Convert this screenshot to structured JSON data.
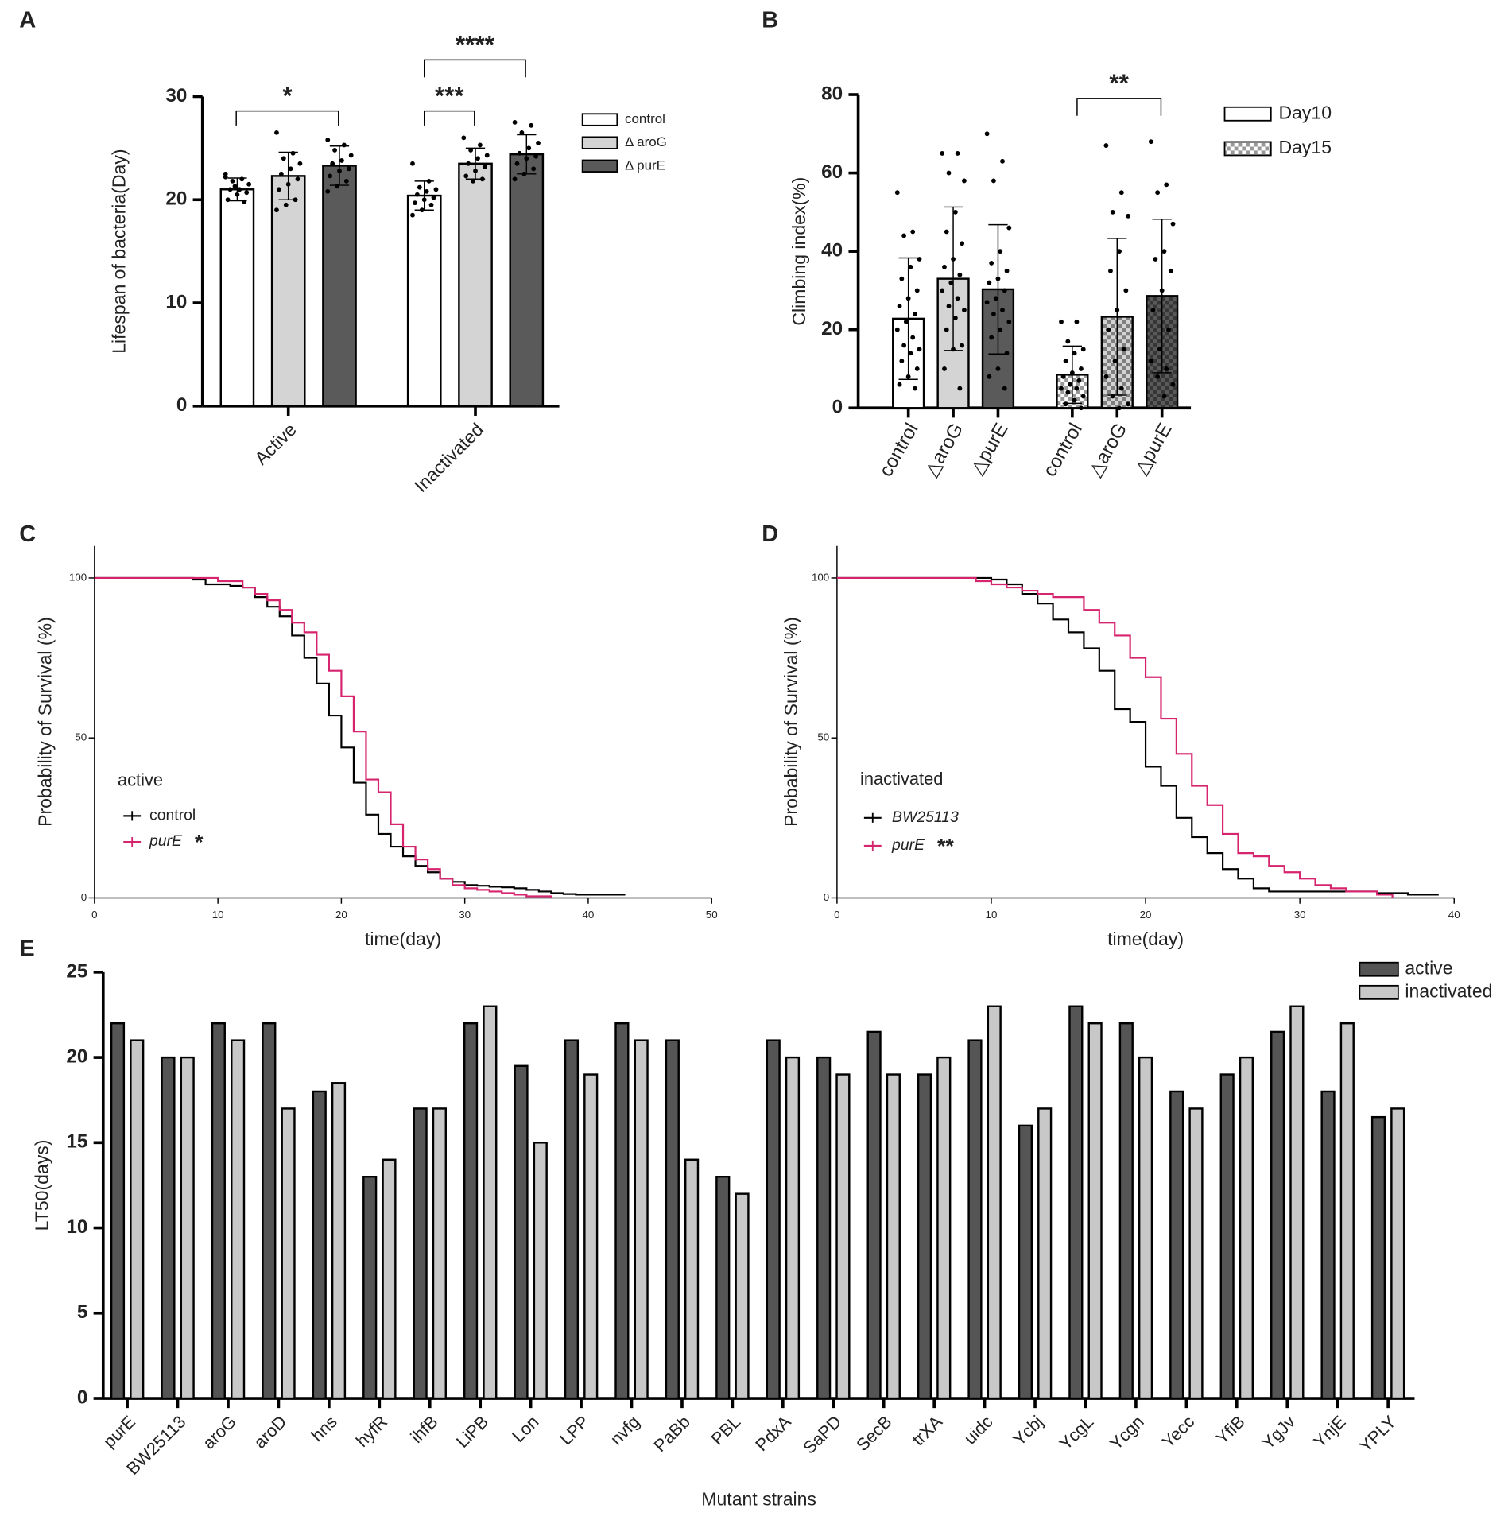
{
  "chart_data": [
    {
      "type": "bar",
      "panel_label": "A",
      "y_label": "Lifespan of bacteria(Day)",
      "categories": [
        "Active",
        "Inactivated"
      ],
      "series": [
        {
          "name": "control",
          "color": "#ffffff",
          "values": [
            21,
            20.4
          ],
          "errors": [
            1.1,
            1.4
          ],
          "points": [
            [
              22.5,
              22,
              21.8,
              21.5,
              21,
              21,
              20.7,
              20.5,
              20,
              19.8,
              21.3,
              22.2
            ],
            [
              23.5,
              21.8,
              21.2,
              21,
              20.8,
              20.5,
              20.2,
              20,
              19.7,
              19.5,
              19,
              18.5
            ]
          ]
        },
        {
          "name": "Δ aroG",
          "color": "#d4d4d4",
          "values": [
            22.3,
            23.5
          ],
          "errors": [
            2.3,
            1.5
          ],
          "points": [
            [
              26.5,
              24.5,
              24,
              23.5,
              23,
              22.5,
              22,
              21.5,
              21,
              20,
              19.5,
              19
            ],
            [
              26,
              25.3,
              24.8,
              24.3,
              24,
              23.5,
              23.2,
              22.8,
              22.3,
              22,
              21.8
            ]
          ]
        },
        {
          "name": "Δ purE",
          "color": "#5a5a5a",
          "values": [
            23.3,
            24.4
          ],
          "errors": [
            1.9,
            1.9
          ],
          "points": [
            [
              25.8,
              25.3,
              24.8,
              24.3,
              23.8,
              23.5,
              23,
              22.8,
              22.3,
              21.8,
              21.3,
              20.8
            ],
            [
              27.5,
              27.2,
              26.5,
              25.5,
              25,
              24.5,
              24.2,
              24,
              23.5,
              23,
              22.5,
              22
            ]
          ]
        }
      ],
      "annotations": [
        "*",
        "***",
        "****"
      ],
      "ylim": [
        0,
        30
      ],
      "yticks": [
        0,
        10,
        20,
        30
      ]
    },
    {
      "type": "bar",
      "panel_label": "B",
      "y_label": "Climbing index(%)",
      "categories": [
        "control",
        "△aroG",
        "△purE"
      ],
      "series": [
        {
          "name": "Day10",
          "colors": [
            "#ffffff",
            "#d4d4d4",
            "#5a5a5a"
          ],
          "values": [
            22.8,
            33,
            30.3
          ],
          "errors": [
            15.5,
            18.3,
            16.5
          ],
          "points": [
            [
              55,
              45,
              44,
              38,
              36,
              33,
              30,
              28,
              26,
              24,
              22,
              20,
              18,
              16,
              15,
              14,
              12,
              10,
              8,
              6,
              5
            ],
            [
              65,
              65,
              60,
              58,
              50,
              45,
              42,
              38,
              36,
              34,
              32,
              30,
              28,
              26,
              25,
              23,
              20,
              16,
              15,
              10,
              5
            ],
            [
              70,
              63,
              58,
              46,
              40,
              37,
              35,
              33,
              32,
              30,
              28,
              27,
              25,
              24,
              22,
              20,
              18,
              14,
              10,
              8,
              5
            ]
          ]
        },
        {
          "name": "Day15",
          "pattern": "checker",
          "colors": [
            "#ffffff",
            "#d4d4d4",
            "#5a5a5a"
          ],
          "values": [
            8.5,
            23.3,
            28.6
          ],
          "errors": [
            7.3,
            20,
            19.6
          ],
          "points": [
            [
              22,
              22,
              17,
              15,
              14,
              12,
              10,
              9,
              8,
              7,
              6,
              5,
              5,
              4,
              3,
              2,
              1,
              0
            ],
            [
              67,
              55,
              50,
              49,
              40,
              35,
              30,
              25,
              20,
              15,
              12,
              8,
              5,
              3,
              1,
              0
            ],
            [
              68,
              57,
              55,
              47,
              40,
              38,
              35,
              30,
              25,
              20,
              15,
              12,
              10,
              8,
              6,
              3
            ]
          ]
        }
      ],
      "annotations": [
        "**"
      ],
      "ylim": [
        0,
        80
      ],
      "yticks": [
        0,
        20,
        40,
        60,
        80
      ]
    },
    {
      "type": "step",
      "panel_label": "C",
      "x_label": "time(day)",
      "y_label": "Probability of Survival (%)",
      "legend_title": "active",
      "annotations": [
        "*"
      ],
      "x": [
        0,
        1,
        2,
        3,
        4,
        5,
        6,
        7,
        8,
        9,
        10,
        11,
        12,
        13,
        14,
        15,
        16,
        17,
        18,
        19,
        20,
        21,
        22,
        23,
        24,
        25,
        26,
        27,
        28,
        29,
        30,
        31,
        32,
        33,
        34,
        35,
        36,
        37,
        38,
        39,
        40,
        41,
        42,
        43
      ],
      "series": [
        {
          "name": "control",
          "color": "#000000",
          "values": [
            100,
            100,
            100,
            100,
            100,
            100,
            100,
            100,
            99.5,
            98,
            98,
            97.5,
            97,
            94,
            91,
            88,
            82,
            75,
            67,
            57,
            47,
            36,
            26,
            20,
            16,
            13,
            10,
            8,
            6,
            5,
            4,
            3.8,
            3.5,
            3.3,
            3,
            2.5,
            2,
            1.5,
            1.2,
            1,
            1,
            1,
            1,
            1
          ]
        },
        {
          "name": "purE",
          "color": "#d6246e",
          "values": [
            100,
            100,
            100,
            100,
            100,
            100,
            100,
            100,
            100,
            100,
            99,
            99,
            97,
            95,
            93,
            90,
            86,
            83,
            76,
            71,
            63,
            52,
            37,
            33,
            23,
            16,
            12,
            9,
            6,
            4,
            3,
            2.5,
            2,
            1.5,
            1,
            0.5,
            0.5,
            0,
            null,
            null,
            null,
            null,
            null,
            null
          ]
        }
      ],
      "xlim": [
        0,
        50
      ],
      "xticks": [
        0,
        10,
        20,
        30,
        40,
        50
      ],
      "ylim": [
        0,
        110
      ],
      "yticks": [
        0,
        50,
        100
      ]
    },
    {
      "type": "step",
      "panel_label": "D",
      "x_label": "time(day)",
      "y_label": "Probability of Survival (%)",
      "legend_title": "inactivated",
      "annotations": [
        "**"
      ],
      "x": [
        0,
        1,
        2,
        3,
        4,
        5,
        6,
        7,
        8,
        9,
        10,
        11,
        12,
        13,
        14,
        15,
        16,
        17,
        18,
        19,
        20,
        21,
        22,
        23,
        24,
        25,
        26,
        27,
        28,
        29,
        30,
        31,
        32,
        33,
        34,
        35,
        36,
        37,
        38,
        39
      ],
      "series": [
        {
          "name": "BW25113",
          "color": "#000000",
          "values": [
            100,
            100,
            100,
            100,
            100,
            100,
            100,
            100,
            100,
            100,
            99.5,
            98,
            95,
            92,
            87,
            83,
            78,
            71,
            59,
            55,
            41,
            35,
            25,
            19,
            14,
            9,
            6,
            3,
            2,
            2,
            2,
            2,
            2,
            2,
            2,
            1.5,
            1.5,
            1,
            1,
            1
          ]
        },
        {
          "name": "purE",
          "color": "#d6246e",
          "values": [
            100,
            100,
            100,
            100,
            100,
            100,
            100,
            100,
            100,
            99,
            98,
            97,
            96,
            95,
            94,
            94,
            90,
            86,
            82,
            75,
            69,
            56,
            45,
            35,
            29,
            20,
            14,
            13,
            10,
            8,
            6,
            4,
            3,
            2,
            2,
            1,
            0,
            null,
            null,
            null
          ]
        }
      ],
      "xlim": [
        0,
        40
      ],
      "xticks": [
        0,
        10,
        20,
        30,
        40
      ],
      "ylim": [
        0,
        110
      ],
      "yticks": [
        0,
        50,
        100
      ]
    },
    {
      "type": "bar",
      "panel_label": "E",
      "x_label": "Mutant strains",
      "y_label": "LT50(days)",
      "categories": [
        "purE",
        "BW25113",
        "aroG",
        "aroD",
        "hns",
        "hyfR",
        "ihfB",
        "LiPB",
        "Lon",
        "LPP",
        "nvfg",
        "PaBb",
        "PBL",
        "PdxA",
        "SaPD",
        "SecB",
        "trXA",
        "uidc",
        "Ycbj",
        "YcgL",
        "Ycgn",
        "Yecc",
        "YfiB",
        "YgJv",
        "YnjE",
        "YPLY"
      ],
      "series": [
        {
          "name": "active",
          "color": "#555555",
          "values": [
            22,
            20,
            22,
            22,
            18,
            13,
            17,
            22,
            19.5,
            21,
            22,
            21,
            13,
            21,
            20,
            21.5,
            19,
            21,
            16,
            23,
            22,
            18,
            19,
            21.5,
            18,
            16.5
          ]
        },
        {
          "name": "inactivated",
          "color": "#c8c8c8",
          "values": [
            21,
            20,
            21,
            17,
            18.5,
            14,
            17,
            23,
            15,
            19,
            21,
            14,
            12,
            20,
            19,
            19,
            20,
            23,
            17,
            22,
            20,
            17,
            20,
            23,
            22,
            17
          ]
        }
      ],
      "ylim": [
        0,
        25
      ],
      "yticks": [
        0,
        5,
        10,
        15,
        20,
        25
      ]
    }
  ]
}
